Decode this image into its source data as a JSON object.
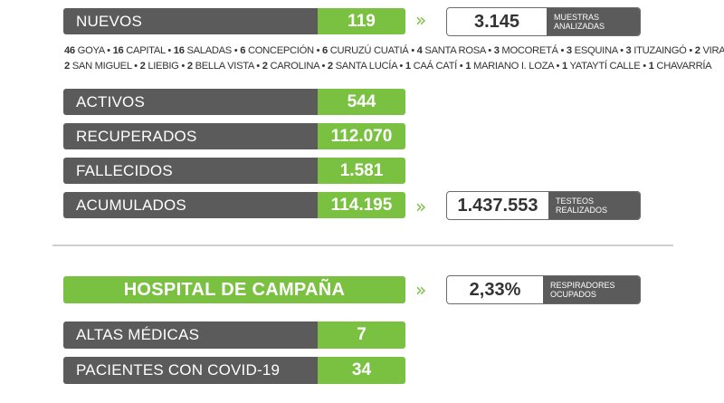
{
  "nuevos": {
    "label": "NUEVOS",
    "value": "119",
    "arrows": "»",
    "box_value": "3.145",
    "box_caption_1": "MUESTRAS",
    "box_caption_2": "ANALIZADAS"
  },
  "towns": [
    [
      [
        "46",
        "GOYA"
      ],
      [
        "16",
        "CAPITAL"
      ],
      [
        "16",
        "SALADAS"
      ],
      [
        "6",
        "CONCEPCIÓN"
      ],
      [
        "6",
        "CURUZÚ CUATIÁ"
      ],
      [
        "4",
        "SANTA ROSA"
      ],
      [
        "3",
        "MOCORETÁ"
      ],
      [
        "3",
        "ESQUINA"
      ],
      [
        "3",
        "ITUZAINGÓ"
      ],
      [
        "2",
        "VIRASORO"
      ]
    ],
    [
      [
        "2",
        "SAN MIGUEL"
      ],
      [
        "2",
        "LIEBIG"
      ],
      [
        "2",
        "BELLA VISTA"
      ],
      [
        "2",
        "CAROLINA"
      ],
      [
        "2",
        "SANTA LUCÍA"
      ],
      [
        "1",
        "CAÁ CATÍ"
      ],
      [
        "1",
        "MARIANO I. LOZA"
      ],
      [
        "1",
        "YATAYTÍ CALLE"
      ],
      [
        "1",
        "CHAVARRÍA"
      ]
    ]
  ],
  "stats": [
    {
      "label": "ACTIVOS",
      "value": "544"
    },
    {
      "label": "RECUPERADOS",
      "value": "112.070"
    },
    {
      "label": "FALLECIDOS",
      "value": "1.581"
    },
    {
      "label": "ACUMULADOS",
      "value": "114.195"
    }
  ],
  "testeos": {
    "arrows": "»",
    "value": "1.437.553",
    "caption_1": "TESTEOS",
    "caption_2": "REALIZADOS"
  },
  "hospital": {
    "title": "HOSPITAL DE CAMPAÑA",
    "arrows": "»",
    "box_value": "2,33%",
    "box_caption_1": "RESPIRADORES",
    "box_caption_2": "OCUPADOS",
    "rows": [
      {
        "label": "ALTAS MÉDICAS",
        "value": "7"
      },
      {
        "label": "PACIENTES CON COVID-19",
        "value": "34"
      }
    ]
  },
  "colors": {
    "green": "#7ac142",
    "gray": "#5b5b5b"
  }
}
